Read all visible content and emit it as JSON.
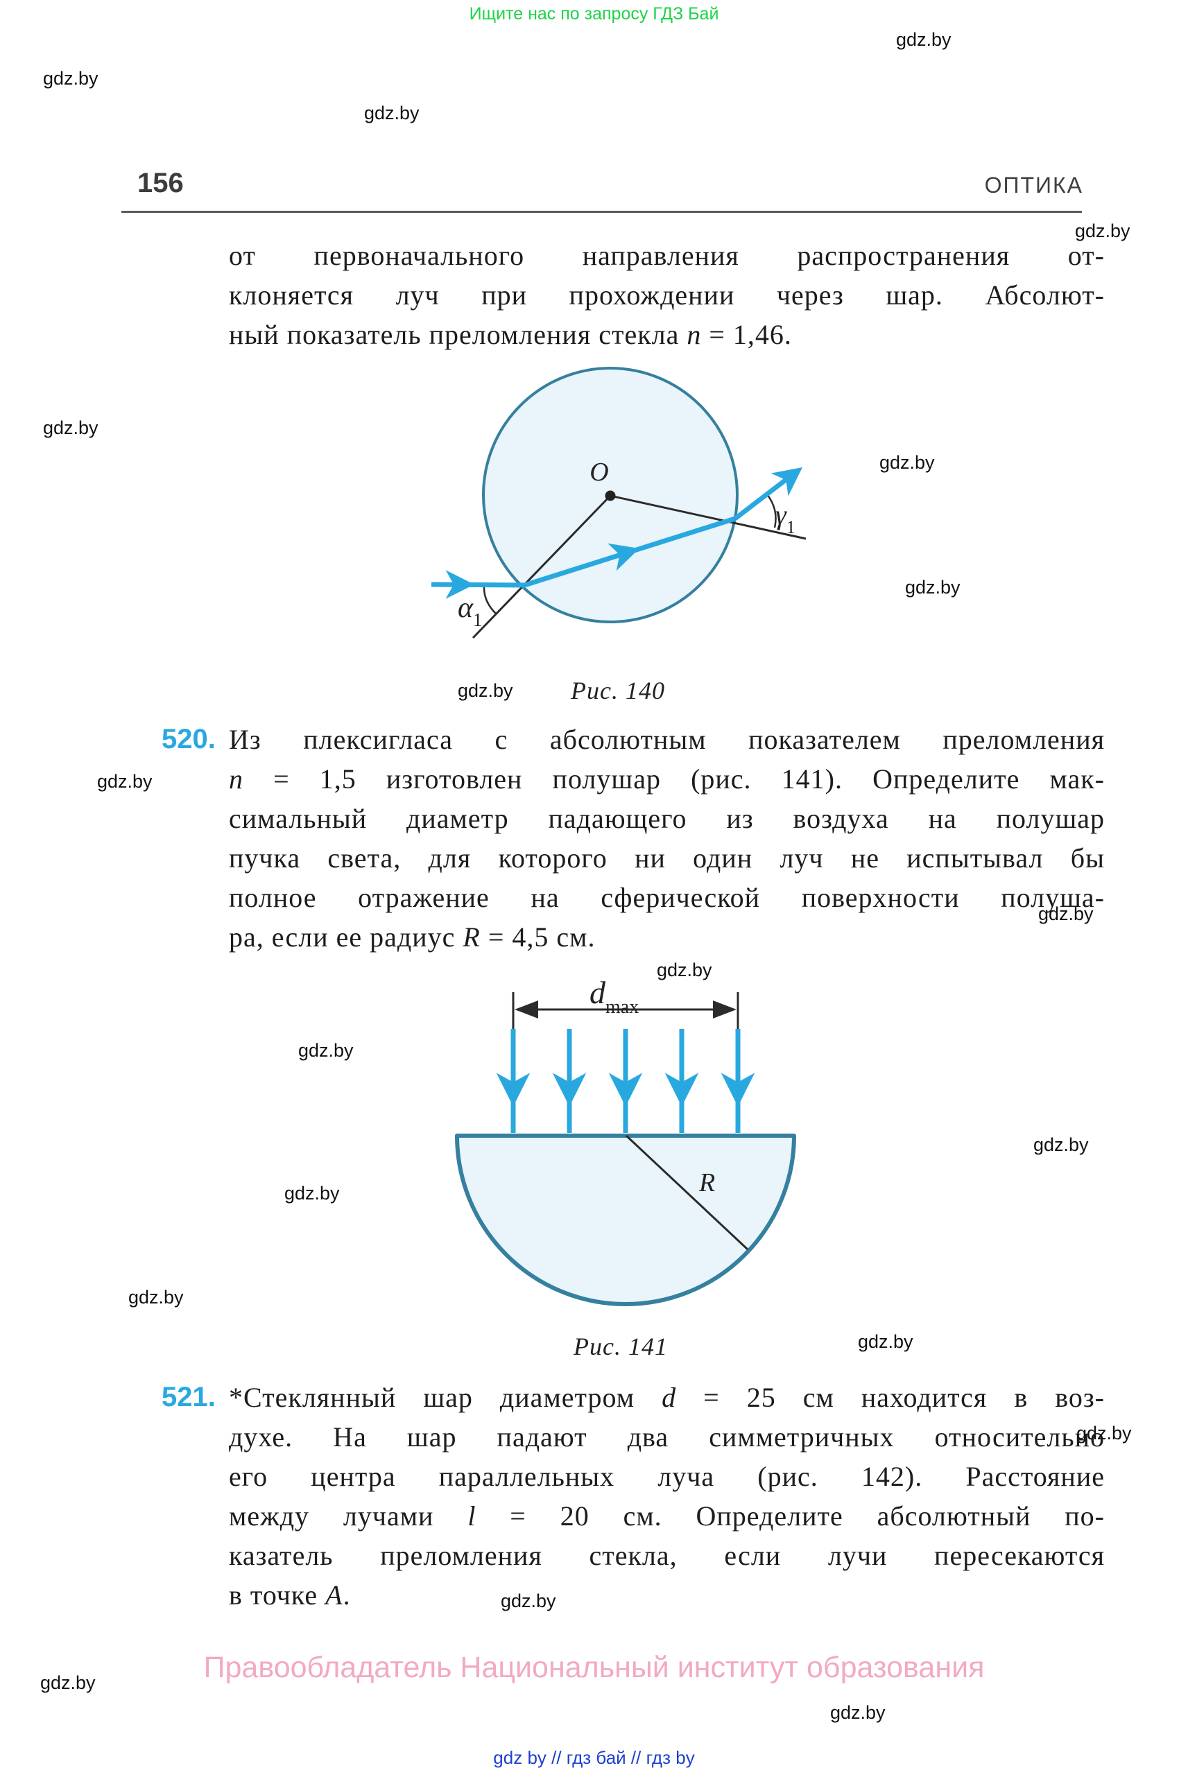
{
  "page": {
    "top_banner": "Ищите нас по запросу ГДЗ Бай",
    "page_number": "156",
    "section_title": "ОПТИКА",
    "watermark": "gdz.by",
    "footer_copyright": "Правообладатель Национальный институт образования",
    "footer_links": "gdz by  //  гдз бай  //  гдз by"
  },
  "colors": {
    "accent_blue": "#29a8e0",
    "figure_fill": "#e9f4fb",
    "figure_stroke": "#35809e",
    "banner_green": "#1fd24a",
    "footer_pink": "#f2a9c4",
    "link_blue": "#1f3fd1",
    "problem_number_blue": "#29a8e0"
  },
  "intro_paragraph": {
    "lines": [
      [
        {
          "t": "от первоначального направления распространения от-"
        }
      ],
      [
        {
          "t": "клоняется луч при прохождении через шар. Абсолют-"
        }
      ],
      [
        {
          "t": "ный показатель преломления стекла "
        },
        {
          "t": "n",
          "i": true
        },
        {
          "t": " = 1,46."
        }
      ]
    ]
  },
  "problems": [
    {
      "number": "520.",
      "lines": [
        [
          {
            "t": "Из плексигласа с абсолютным показателем преломления"
          }
        ],
        [
          {
            "t": "n",
            "i": true
          },
          {
            "t": " = 1,5 изготовлен полушар (рис. 141). Определите мак-"
          }
        ],
        [
          {
            "t": "симальный диаметр падающего из воздуха на полушар"
          }
        ],
        [
          {
            "t": "пучка света, для которого ни один луч не испытывал бы"
          }
        ],
        [
          {
            "t": "полное отражение на сферической поверхности полуша-"
          }
        ],
        [
          {
            "t": "ра, если ее радиус "
          },
          {
            "t": "R",
            "i": true
          },
          {
            "t": " = 4,5 см."
          }
        ]
      ]
    },
    {
      "number": "521.",
      "lines": [
        [
          {
            "t": "*Стеклянный шар диаметром "
          },
          {
            "t": "d",
            "i": true
          },
          {
            "t": " = 25 см находится в воз-"
          }
        ],
        [
          {
            "t": "духе. На шар падают два симметричных относительно"
          }
        ],
        [
          {
            "t": "его центра параллельных луча (рис. 142). Расстояние"
          }
        ],
        [
          {
            "t": "между лучами "
          },
          {
            "t": "l",
            "i": true
          },
          {
            "t": " = 20 см. Определите абсолютный по-"
          }
        ],
        [
          {
            "t": "казатель преломления стекла, если лучи пересекаются"
          }
        ],
        [
          {
            "t": "в точке "
          },
          {
            "t": "A",
            "i": true
          },
          {
            "t": "."
          }
        ]
      ]
    }
  ],
  "figures": [
    {
      "caption": "Рис. 140",
      "center_label": "O",
      "alpha": "α",
      "alpha_sub": "1",
      "gamma": "γ",
      "gamma_sub": "1"
    },
    {
      "caption": "Рис. 141",
      "d": "d",
      "d_sub": "max",
      "radius": "R"
    }
  ]
}
